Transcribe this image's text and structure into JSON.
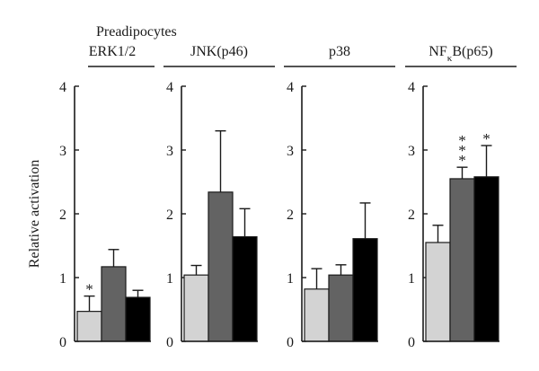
{
  "chart_data": {
    "type": "bar",
    "super_title": "Preadipocytes",
    "ylabel": "Relative activation",
    "ylim": [
      0,
      4
    ],
    "yticks": [
      0,
      1,
      2,
      3,
      4
    ],
    "grid": false,
    "legend": "none",
    "series_colors": [
      "#d3d3d3",
      "#636363",
      "#000000"
    ],
    "panels": [
      {
        "title": "ERK1/2",
        "title_html": "ERK1/2",
        "values": [
          0.47,
          1.17,
          0.69
        ],
        "errors": [
          0.24,
          0.27,
          0.11
        ],
        "significance": [
          "*",
          "",
          ""
        ]
      },
      {
        "title": "JNK(p46)",
        "title_html": "JNK(p46)",
        "values": [
          1.04,
          2.34,
          1.64
        ],
        "errors": [
          0.15,
          0.96,
          0.44
        ],
        "significance": [
          "",
          "",
          ""
        ]
      },
      {
        "title": "p38",
        "title_html": "p38",
        "values": [
          0.82,
          1.04,
          1.61
        ],
        "errors": [
          0.32,
          0.16,
          0.56
        ],
        "significance": [
          "",
          "",
          ""
        ]
      },
      {
        "title": "NFκB(p65)",
        "title_html": "NF<tspan baseline-shift='sub' font-size='11'>κ</tspan>B(p65)",
        "values": [
          1.55,
          2.55,
          2.58
        ],
        "errors": [
          0.27,
          0.18,
          0.49
        ],
        "significance": [
          "",
          "***",
          "*"
        ]
      }
    ]
  }
}
